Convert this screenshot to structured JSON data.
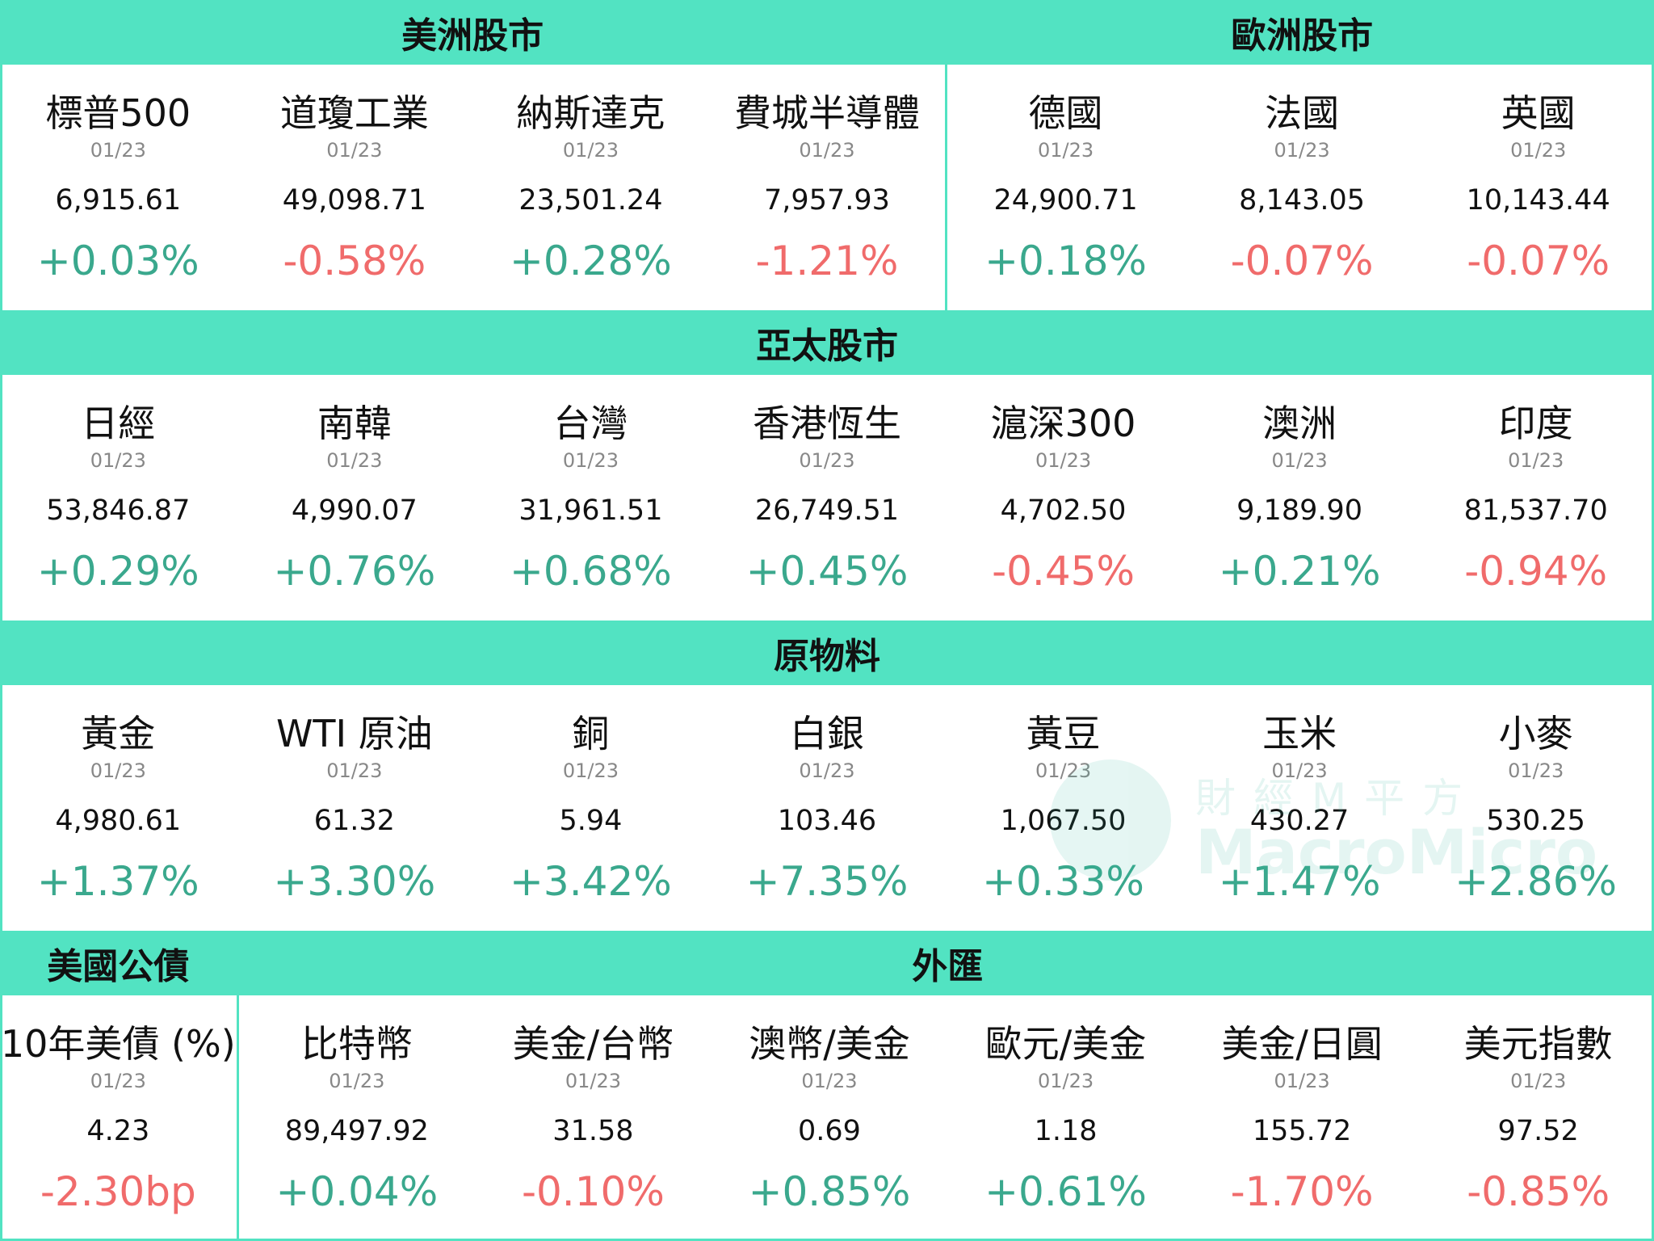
{
  "sections": [
    {
      "groups": [
        {
          "title": "美洲股市",
          "items": [
            {
              "name": "標普500",
              "date": "01/23",
              "value": "6,915.61",
              "change": "+0.03%"
            },
            {
              "name": "道瓊工業",
              "date": "01/23",
              "value": "49,098.71",
              "change": "-0.58%"
            },
            {
              "name": "納斯達克",
              "date": "01/23",
              "value": "23,501.24",
              "change": "+0.28%"
            },
            {
              "name": "費城半導體",
              "date": "01/23",
              "value": "7,957.93",
              "change": "-1.21%"
            }
          ]
        },
        {
          "title": "歐洲股市",
          "items": [
            {
              "name": "德國",
              "date": "01/23",
              "value": "24,900.71",
              "change": "+0.18%"
            },
            {
              "name": "法國",
              "date": "01/23",
              "value": "8,143.05",
              "change": "-0.07%"
            },
            {
              "name": "英國",
              "date": "01/23",
              "value": "10,143.44",
              "change": "-0.07%"
            }
          ]
        }
      ]
    },
    {
      "groups": [
        {
          "title": "亞太股市",
          "items": [
            {
              "name": "日經",
              "date": "01/23",
              "value": "53,846.87",
              "change": "+0.29%"
            },
            {
              "name": "南韓",
              "date": "01/23",
              "value": "4,990.07",
              "change": "+0.76%"
            },
            {
              "name": "台灣",
              "date": "01/23",
              "value": "31,961.51",
              "change": "+0.68%"
            },
            {
              "name": "香港恆生",
              "date": "01/23",
              "value": "26,749.51",
              "change": "+0.45%"
            },
            {
              "name": "滬深300",
              "date": "01/23",
              "value": "4,702.50",
              "change": "-0.45%"
            },
            {
              "name": "澳洲",
              "date": "01/23",
              "value": "9,189.90",
              "change": "+0.21%"
            },
            {
              "name": "印度",
              "date": "01/23",
              "value": "81,537.70",
              "change": "-0.94%"
            }
          ]
        }
      ]
    },
    {
      "groups": [
        {
          "title": "原物料",
          "items": [
            {
              "name": "黃金",
              "date": "01/23",
              "value": "4,980.61",
              "change": "+1.37%"
            },
            {
              "name": "WTI 原油",
              "date": "01/23",
              "value": "61.32",
              "change": "+3.30%"
            },
            {
              "name": "銅",
              "date": "01/23",
              "value": "5.94",
              "change": "+3.42%"
            },
            {
              "name": "白銀",
              "date": "01/23",
              "value": "103.46",
              "change": "+7.35%"
            },
            {
              "name": "黃豆",
              "date": "01/23",
              "value": "1,067.50",
              "change": "+0.33%"
            },
            {
              "name": "玉米",
              "date": "01/23",
              "value": "430.27",
              "change": "+1.47%"
            },
            {
              "name": "小麥",
              "date": "01/23",
              "value": "530.25",
              "change": "+2.86%"
            }
          ]
        }
      ]
    },
    {
      "groups": [
        {
          "title": "美國公債",
          "items": [
            {
              "name": "10年美債 (%)",
              "date": "01/23",
              "value": "4.23",
              "change": "-2.30bp"
            }
          ]
        },
        {
          "title": "外匯",
          "items": [
            {
              "name": "比特幣",
              "date": "01/23",
              "value": "89,497.92",
              "change": "+0.04%"
            },
            {
              "name": "美金/台幣",
              "date": "01/23",
              "value": "31.58",
              "change": "-0.10%"
            },
            {
              "name": "澳幣/美金",
              "date": "01/23",
              "value": "0.69",
              "change": "+0.85%"
            },
            {
              "name": "歐元/美金",
              "date": "01/23",
              "value": "1.18",
              "change": "+0.61%"
            },
            {
              "name": "美金/日圓",
              "date": "01/23",
              "value": "155.72",
              "change": "-1.70%"
            },
            {
              "name": "美元指數",
              "date": "01/23",
              "value": "97.52",
              "change": "-0.85%"
            }
          ]
        }
      ]
    }
  ],
  "watermark": {
    "brand_cn": "財經M平方",
    "brand_en": "MacroMicro"
  }
}
